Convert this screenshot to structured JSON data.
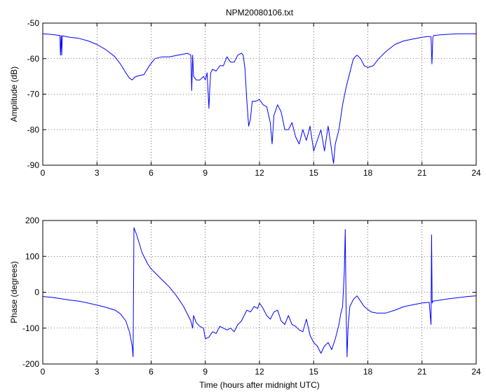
{
  "colors": {
    "series": "#0000ff",
    "axes": "#000000",
    "background": "#ffffff"
  },
  "chart_data": [
    {
      "type": "line",
      "title": "NPM20080106.txt",
      "xlabel": "",
      "ylabel": "Amplitude (dB)",
      "xlim": [
        0,
        24
      ],
      "ylim": [
        -90,
        -50
      ],
      "xticks": [
        0,
        3,
        6,
        9,
        12,
        15,
        18,
        21,
        24
      ],
      "yticks": [
        -90,
        -80,
        -70,
        -60,
        -50
      ],
      "grid": true,
      "series": [
        {
          "x": [
            0,
            0.5,
            0.95,
            0.98,
            1.02,
            1.05,
            1.08,
            1.5,
            2,
            2.5,
            3,
            3.5,
            4,
            4.3,
            4.6,
            4.8,
            4.95,
            5.1,
            5.3,
            5.6,
            5.9,
            6.2,
            6.6,
            7,
            7.5,
            8,
            8.2,
            8.25,
            8.3,
            8.35,
            8.5,
            8.7,
            8.9,
            9,
            9.1,
            9.2,
            9.25,
            9.3,
            9.4,
            9.6,
            9.8,
            10,
            10.2,
            10.4,
            10.6,
            10.8,
            11,
            11.1,
            11.2,
            11.3,
            11.4,
            11.5,
            11.6,
            11.8,
            12,
            12.2,
            12.4,
            12.6,
            12.7,
            12.8,
            13,
            13.2,
            13.4,
            13.6,
            13.8,
            14,
            14.2,
            14.4,
            14.6,
            14.8,
            15,
            15.2,
            15.4,
            15.6,
            15.8,
            16,
            16.1,
            16.2,
            16.4,
            16.6,
            16.8,
            17,
            17.2,
            17.4,
            17.6,
            17.8,
            18,
            18.3,
            18.6,
            19,
            19.5,
            20,
            20.5,
            21,
            21.3,
            21.5,
            21.55,
            21.6,
            21.65,
            22,
            23,
            24
          ],
          "y": [
            -53,
            -53.2,
            -53.5,
            -59,
            -53.5,
            -59,
            -53.6,
            -54,
            -54.3,
            -55,
            -56,
            -57.5,
            -59.5,
            -61.5,
            -64,
            -65.5,
            -66,
            -65.2,
            -64.8,
            -64.5,
            -62,
            -60,
            -59.5,
            -59.5,
            -59,
            -58.5,
            -59,
            -69,
            -59,
            -65,
            -66,
            -66,
            -65,
            -66,
            -64,
            -74,
            -68,
            -64,
            -63,
            -63.5,
            -62,
            -62,
            -59.5,
            -61,
            -61,
            -59,
            -58.5,
            -59,
            -63,
            -72,
            -79,
            -77,
            -72,
            -72,
            -71.5,
            -73,
            -73.5,
            -78,
            -84,
            -76,
            -73,
            -75,
            -80,
            -80,
            -78,
            -82,
            -84,
            -80,
            -83,
            -79,
            -86,
            -83,
            -80,
            -86,
            -79,
            -86,
            -89.5,
            -84,
            -80,
            -73,
            -68,
            -64,
            -60,
            -59,
            -60,
            -62,
            -62.5,
            -62,
            -60,
            -58,
            -56,
            -55,
            -54.5,
            -54,
            -53.8,
            -53.8,
            -61.5,
            -54,
            -53.5,
            -53.3,
            -53,
            -53
          ]
        }
      ]
    },
    {
      "type": "line",
      "title": "",
      "xlabel": "Time (hours after midnight UTC)",
      "ylabel": "Phase (degrees)",
      "xlim": [
        0,
        24
      ],
      "ylim": [
        -200,
        200
      ],
      "xticks": [
        0,
        3,
        6,
        9,
        12,
        15,
        18,
        21,
        24
      ],
      "yticks": [
        -200,
        -100,
        0,
        100,
        200
      ],
      "grid": true,
      "series": [
        {
          "x": [
            0,
            0.5,
            1,
            1.5,
            2,
            2.5,
            3,
            3.5,
            4,
            4.3,
            4.6,
            4.8,
            4.95,
            5,
            5.05,
            5.2,
            5.5,
            5.8,
            6,
            6.3,
            6.6,
            7,
            7.4,
            7.8,
            8.2,
            8.3,
            8.35,
            8.5,
            8.7,
            8.9,
            9,
            9.2,
            9.4,
            9.6,
            9.8,
            10,
            10.2,
            10.4,
            10.6,
            10.8,
            11,
            11.1,
            11.3,
            11.5,
            11.7,
            11.9,
            12,
            12.2,
            12.4,
            12.6,
            12.8,
            13,
            13.2,
            13.4,
            13.6,
            13.8,
            14,
            14.2,
            14.4,
            14.6,
            14.8,
            15,
            15.2,
            15.4,
            15.6,
            15.8,
            16,
            16.2,
            16.4,
            16.5,
            16.6,
            16.7,
            16.75,
            16.8,
            16.85,
            16.9,
            17,
            17.2,
            17.4,
            17.6,
            17.8,
            18,
            18.2,
            18.5,
            19,
            19.5,
            20,
            20.5,
            21,
            21.4,
            21.5,
            21.53,
            21.56,
            21.6,
            22,
            22.5,
            23,
            23.5,
            24
          ],
          "y": [
            -12,
            -14,
            -18,
            -22,
            -25,
            -30,
            -36,
            -42,
            -50,
            -60,
            -80,
            -110,
            -150,
            -180,
            180,
            160,
            110,
            80,
            65,
            50,
            35,
            15,
            -10,
            -40,
            -80,
            -100,
            -65,
            -85,
            -95,
            -100,
            -130,
            -125,
            -110,
            -115,
            -95,
            -100,
            -105,
            -100,
            -110,
            -90,
            -80,
            -70,
            -50,
            -55,
            -40,
            -45,
            -30,
            -45,
            -65,
            -75,
            -55,
            -50,
            -80,
            -90,
            -65,
            -90,
            -95,
            -105,
            -110,
            -75,
            -120,
            -140,
            -150,
            -170,
            -150,
            -140,
            -160,
            -130,
            -90,
            -60,
            -40,
            60,
            175,
            -60,
            -180,
            -100,
            -40,
            -20,
            -10,
            -25,
            -40,
            -48,
            -55,
            -58,
            -58,
            -50,
            -40,
            -35,
            -30,
            -28,
            -90,
            160,
            -30,
            -25,
            -22,
            -18,
            -15,
            -12,
            -10
          ]
        }
      ]
    }
  ]
}
